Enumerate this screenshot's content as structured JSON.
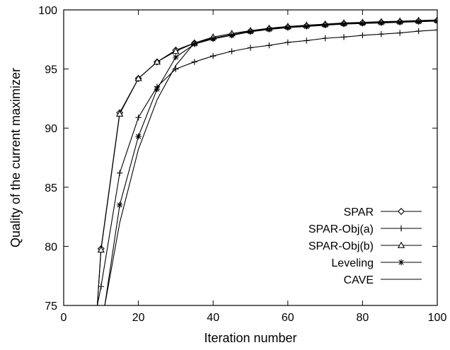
{
  "chart_data": {
    "type": "line",
    "title": "",
    "xlabel": "Iteration number",
    "ylabel": "Quality of the current maximizer",
    "xlim": [
      0,
      100
    ],
    "ylim": [
      75,
      100
    ],
    "xticks": [
      0,
      20,
      40,
      60,
      80,
      100
    ],
    "yticks": [
      75,
      80,
      85,
      90,
      95,
      100
    ],
    "grid": false,
    "legend_position": "bottom-right",
    "series": [
      {
        "name": "SPAR",
        "marker": "diamond",
        "points": [
          [
            9,
            75
          ],
          [
            10,
            79.8
          ],
          [
            15,
            91.3
          ],
          [
            20,
            94.2
          ],
          [
            25,
            95.6
          ],
          [
            30,
            96.6
          ],
          [
            35,
            97.2
          ],
          [
            40,
            97.6
          ],
          [
            45,
            97.9
          ],
          [
            50,
            98.2
          ],
          [
            55,
            98.4
          ],
          [
            60,
            98.55
          ],
          [
            65,
            98.65
          ],
          [
            70,
            98.75
          ],
          [
            75,
            98.85
          ],
          [
            80,
            98.9
          ],
          [
            85,
            98.95
          ],
          [
            90,
            99.0
          ],
          [
            95,
            99.05
          ],
          [
            100,
            99.1
          ]
        ]
      },
      {
        "name": "SPAR-Obj(a)",
        "marker": "plus",
        "points": [
          [
            9,
            75
          ],
          [
            10,
            76.6
          ],
          [
            15,
            86.2
          ],
          [
            20,
            90.9
          ],
          [
            25,
            93.5
          ],
          [
            30,
            95.0
          ],
          [
            35,
            95.6
          ],
          [
            40,
            96.1
          ],
          [
            45,
            96.5
          ],
          [
            50,
            96.8
          ],
          [
            55,
            97.0
          ],
          [
            60,
            97.25
          ],
          [
            65,
            97.4
          ],
          [
            70,
            97.6
          ],
          [
            75,
            97.7
          ],
          [
            80,
            97.85
          ],
          [
            85,
            97.95
          ],
          [
            90,
            98.05
          ],
          [
            95,
            98.2
          ],
          [
            100,
            98.3
          ]
        ]
      },
      {
        "name": "SPAR-Obj(b)",
        "marker": "triangle",
        "points": [
          [
            9,
            75
          ],
          [
            10,
            79.7
          ],
          [
            15,
            91.2
          ],
          [
            20,
            94.2
          ],
          [
            25,
            95.6
          ],
          [
            30,
            96.5
          ],
          [
            35,
            97.2
          ],
          [
            40,
            97.7
          ],
          [
            45,
            98.0
          ],
          [
            50,
            98.25
          ],
          [
            55,
            98.45
          ],
          [
            60,
            98.6
          ],
          [
            65,
            98.7
          ],
          [
            70,
            98.8
          ],
          [
            75,
            98.9
          ],
          [
            80,
            98.95
          ],
          [
            85,
            99.0
          ],
          [
            90,
            99.05
          ],
          [
            95,
            99.1
          ],
          [
            100,
            99.15
          ]
        ]
      },
      {
        "name": "Leveling",
        "marker": "star",
        "points": [
          [
            11,
            75
          ],
          [
            15,
            83.5
          ],
          [
            20,
            89.3
          ],
          [
            25,
            93.3
          ],
          [
            30,
            96.0
          ],
          [
            35,
            97.1
          ],
          [
            40,
            97.55
          ],
          [
            45,
            97.85
          ],
          [
            50,
            98.15
          ],
          [
            55,
            98.35
          ],
          [
            60,
            98.5
          ],
          [
            65,
            98.6
          ],
          [
            70,
            98.7
          ],
          [
            75,
            98.8
          ],
          [
            80,
            98.85
          ],
          [
            85,
            98.9
          ],
          [
            90,
            98.95
          ],
          [
            95,
            99.0
          ],
          [
            100,
            99.05
          ]
        ]
      },
      {
        "name": "CAVE",
        "marker": "none",
        "points": [
          [
            11,
            75
          ],
          [
            15,
            82.0
          ],
          [
            20,
            88.2
          ],
          [
            25,
            92.4
          ],
          [
            30,
            95.3
          ],
          [
            35,
            97.2
          ],
          [
            40,
            97.6
          ],
          [
            45,
            97.9
          ],
          [
            50,
            98.2
          ],
          [
            55,
            98.4
          ],
          [
            60,
            98.55
          ],
          [
            65,
            98.65
          ],
          [
            70,
            98.75
          ],
          [
            75,
            98.85
          ],
          [
            80,
            98.9
          ],
          [
            85,
            98.95
          ],
          [
            90,
            99.0
          ],
          [
            95,
            99.05
          ],
          [
            100,
            99.1
          ]
        ]
      }
    ]
  }
}
